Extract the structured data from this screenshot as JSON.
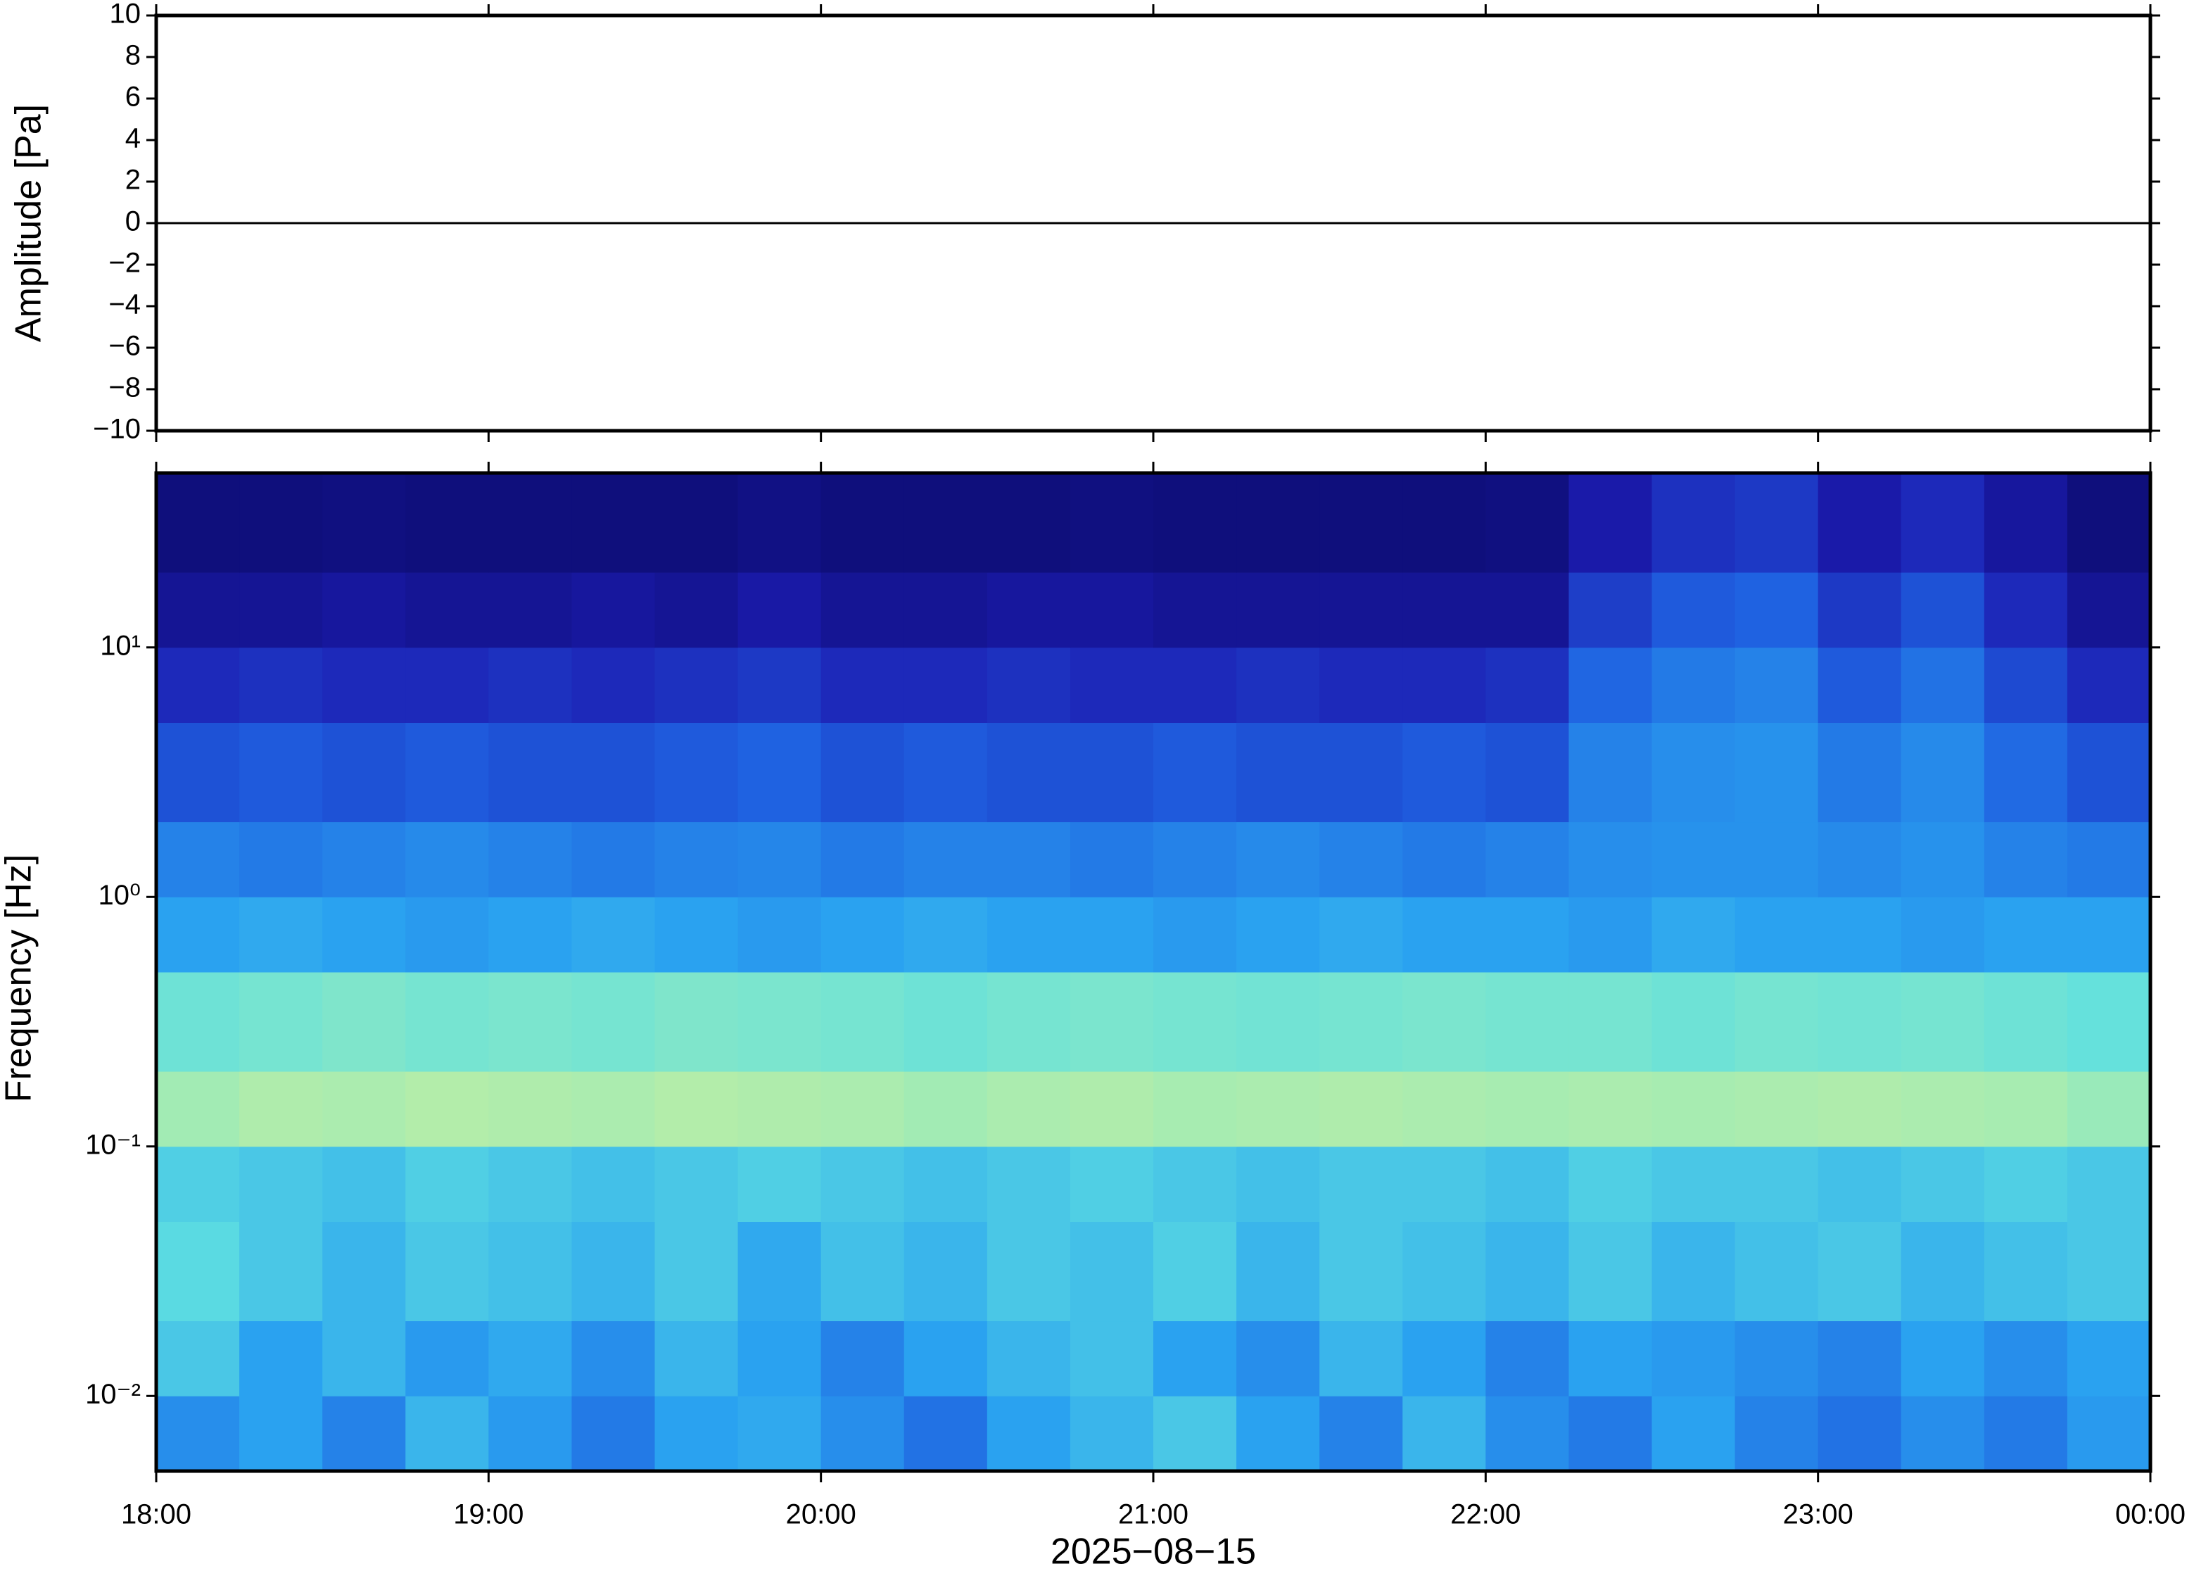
{
  "chart_data": [
    {
      "type": "line",
      "ylabel": "Amplitude [Pa]",
      "xlim": [
        18,
        24
      ],
      "ylim": [
        -10,
        10
      ],
      "yticks": [
        {
          "value": -10,
          "label": "−10"
        },
        {
          "value": -8,
          "label": "−8"
        },
        {
          "value": -6,
          "label": "−6"
        },
        {
          "value": -4,
          "label": "−4"
        },
        {
          "value": -2,
          "label": "−2"
        },
        0,
        2,
        4,
        6,
        8,
        10
      ],
      "x": [
        18,
        18.5,
        19,
        19.5,
        20,
        20.5,
        21,
        21.5,
        22,
        22.5,
        23,
        23.5,
        24
      ],
      "values": [
        0,
        0,
        0,
        0,
        0,
        0,
        0,
        0,
        0,
        0,
        0,
        0,
        0
      ],
      "color": "#000000"
    },
    {
      "type": "heatmap",
      "ylabel": "Frequency [Hz]",
      "xlabel": "2025−08−15",
      "xlim": [
        18,
        24
      ],
      "ylim": [
        0.005,
        50
      ],
      "ylog": true,
      "xticks": [
        {
          "value": 18,
          "label": "18:00"
        },
        {
          "value": 19,
          "label": "19:00"
        },
        {
          "value": 20,
          "label": "20:00"
        },
        {
          "value": 21,
          "label": "21:00"
        },
        {
          "value": 22,
          "label": "22:00"
        },
        {
          "value": 23,
          "label": "23:00"
        },
        {
          "value": 24,
          "label": "00:00"
        }
      ],
      "yticks": [
        {
          "value": 0.01,
          "label": "10⁻²"
        },
        {
          "value": 0.1,
          "label": "10⁻¹"
        },
        {
          "value": 1,
          "label": "10⁰"
        },
        {
          "value": 10,
          "label": "10¹"
        }
      ],
      "x_bins": [
        18,
        18.25,
        18.5,
        18.75,
        19,
        19.25,
        19.5,
        19.75,
        20,
        20.25,
        20.5,
        20.75,
        21,
        21.25,
        21.5,
        21.75,
        22,
        22.25,
        22.5,
        22.75,
        23,
        23.25,
        23.5,
        23.75,
        24
      ],
      "y_bins": [
        0.005,
        0.01,
        0.02,
        0.05,
        0.1,
        0.2,
        0.5,
        1,
        2,
        5,
        10,
        20,
        50
      ],
      "zlim": [
        0,
        1
      ],
      "colormap": [
        "#0b0b6b",
        "#1c1cb0",
        "#1f5fe0",
        "#2aa2f0",
        "#5fe0e0",
        "#a8ecb0",
        "#eef08c"
      ],
      "z": [
        [
          0.45,
          0.5,
          0.42,
          0.55,
          0.48,
          0.4,
          0.5,
          0.52,
          0.45,
          0.38,
          0.5,
          0.55,
          0.6,
          0.5,
          0.42,
          0.55,
          0.45,
          0.4,
          0.5,
          0.42,
          0.38,
          0.45,
          0.4,
          0.48
        ],
        [
          0.6,
          0.5,
          0.55,
          0.48,
          0.52,
          0.45,
          0.55,
          0.5,
          0.42,
          0.5,
          0.55,
          0.58,
          0.5,
          0.45,
          0.55,
          0.5,
          0.42,
          0.5,
          0.48,
          0.45,
          0.42,
          0.5,
          0.45,
          0.5
        ],
        [
          0.65,
          0.6,
          0.55,
          0.6,
          0.58,
          0.55,
          0.6,
          0.52,
          0.58,
          0.55,
          0.6,
          0.58,
          0.62,
          0.55,
          0.6,
          0.58,
          0.55,
          0.6,
          0.55,
          0.58,
          0.6,
          0.55,
          0.58,
          0.6
        ],
        [
          0.62,
          0.6,
          0.58,
          0.62,
          0.6,
          0.58,
          0.6,
          0.62,
          0.6,
          0.58,
          0.6,
          0.62,
          0.6,
          0.58,
          0.6,
          0.6,
          0.58,
          0.62,
          0.6,
          0.6,
          0.58,
          0.6,
          0.62,
          0.6
        ],
        [
          0.82,
          0.85,
          0.84,
          0.86,
          0.85,
          0.84,
          0.86,
          0.85,
          0.84,
          0.82,
          0.84,
          0.85,
          0.83,
          0.84,
          0.85,
          0.84,
          0.83,
          0.84,
          0.83,
          0.84,
          0.85,
          0.84,
          0.83,
          0.8
        ],
        [
          0.7,
          0.72,
          0.74,
          0.72,
          0.73,
          0.72,
          0.74,
          0.73,
          0.72,
          0.7,
          0.72,
          0.73,
          0.72,
          0.71,
          0.72,
          0.73,
          0.72,
          0.72,
          0.7,
          0.72,
          0.71,
          0.72,
          0.7,
          0.68
        ],
        [
          0.5,
          0.52,
          0.5,
          0.48,
          0.5,
          0.52,
          0.5,
          0.48,
          0.5,
          0.52,
          0.5,
          0.5,
          0.48,
          0.5,
          0.52,
          0.5,
          0.5,
          0.48,
          0.52,
          0.5,
          0.5,
          0.48,
          0.5,
          0.5
        ],
        [
          0.42,
          0.4,
          0.42,
          0.44,
          0.42,
          0.4,
          0.42,
          0.43,
          0.4,
          0.42,
          0.42,
          0.4,
          0.42,
          0.44,
          0.42,
          0.4,
          0.42,
          0.45,
          0.46,
          0.46,
          0.44,
          0.46,
          0.42,
          0.4
        ],
        [
          0.3,
          0.32,
          0.3,
          0.32,
          0.3,
          0.3,
          0.32,
          0.34,
          0.3,
          0.32,
          0.3,
          0.3,
          0.32,
          0.3,
          0.3,
          0.32,
          0.3,
          0.42,
          0.45,
          0.46,
          0.4,
          0.44,
          0.36,
          0.3
        ],
        [
          0.2,
          0.22,
          0.2,
          0.2,
          0.22,
          0.2,
          0.22,
          0.24,
          0.2,
          0.2,
          0.22,
          0.2,
          0.2,
          0.22,
          0.2,
          0.2,
          0.22,
          0.35,
          0.4,
          0.42,
          0.32,
          0.38,
          0.28,
          0.2
        ],
        [
          0.1,
          0.1,
          0.12,
          0.1,
          0.1,
          0.12,
          0.1,
          0.14,
          0.1,
          0.1,
          0.12,
          0.12,
          0.1,
          0.1,
          0.1,
          0.1,
          0.1,
          0.25,
          0.32,
          0.34,
          0.24,
          0.3,
          0.2,
          0.1
        ],
        [
          0.04,
          0.04,
          0.05,
          0.04,
          0.04,
          0.04,
          0.04,
          0.06,
          0.04,
          0.04,
          0.04,
          0.05,
          0.04,
          0.04,
          0.04,
          0.04,
          0.05,
          0.15,
          0.22,
          0.24,
          0.15,
          0.2,
          0.12,
          0.04
        ]
      ]
    }
  ]
}
